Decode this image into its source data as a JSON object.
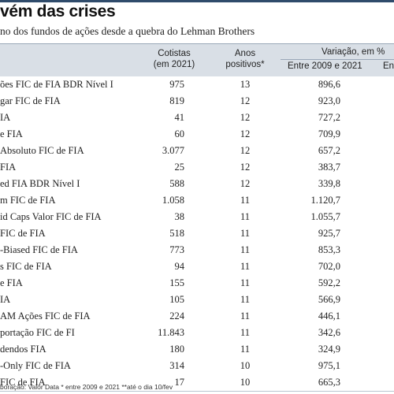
{
  "title": "vém das crises",
  "subtitle": "no dos fundos de ações desde a quebra do Lehman Brothers",
  "header": {
    "cotistas_line1": "Cotistas",
    "cotistas_line2": "(em 2021)",
    "anos_line1": "Anos",
    "anos_line2": "positivos*",
    "variacao": "Variação, em %",
    "entre": "Entre 2009 e 2021",
    "en": "En"
  },
  "rows": [
    {
      "name": "ões FIC de FIA BDR Nível I",
      "cotistas": "975",
      "anos": "13",
      "variacao": "896,6"
    },
    {
      "name": "gar FIC de FIA",
      "cotistas": "819",
      "anos": "12",
      "variacao": "923,0"
    },
    {
      "name": "IA",
      "cotistas": "41",
      "anos": "12",
      "variacao": "727,2"
    },
    {
      "name": "e FIA",
      "cotistas": "60",
      "anos": "12",
      "variacao": "709,9"
    },
    {
      "name": "Absoluto FIC de FIA",
      "cotistas": "3.077",
      "anos": "12",
      "variacao": "657,2"
    },
    {
      "name": "FIA",
      "cotistas": "25",
      "anos": "12",
      "variacao": "383,7"
    },
    {
      "name": "ed FIA BDR Nível I",
      "cotistas": "588",
      "anos": "12",
      "variacao": "339,8"
    },
    {
      "name": "m FIC de FIA",
      "cotistas": "1.058",
      "anos": "11",
      "variacao": "1.120,7"
    },
    {
      "name": "id Caps Valor FIC de FIA",
      "cotistas": "38",
      "anos": "11",
      "variacao": "1.055,7"
    },
    {
      "name": "FIC de FIA",
      "cotistas": "518",
      "anos": "11",
      "variacao": "925,7"
    },
    {
      "name": "-Biased FIC de FIA",
      "cotistas": "773",
      "anos": "11",
      "variacao": "853,3"
    },
    {
      "name": "s FIC de FIA",
      "cotistas": "94",
      "anos": "11",
      "variacao": "702,0"
    },
    {
      "name": "e FIA",
      "cotistas": "155",
      "anos": "11",
      "variacao": "592,2"
    },
    {
      "name": "IA",
      "cotistas": "105",
      "anos": "11",
      "variacao": "566,9"
    },
    {
      "name": "AM Ações FIC de FIA",
      "cotistas": "224",
      "anos": "11",
      "variacao": "446,1"
    },
    {
      "name": "portação FIC de FI",
      "cotistas": "11.843",
      "anos": "11",
      "variacao": "342,6"
    },
    {
      "name": "dendos FIA",
      "cotistas": "180",
      "anos": "11",
      "variacao": "324,9"
    },
    {
      "name": "-Only FIC de FIA",
      "cotistas": "314",
      "anos": "10",
      "variacao": "975,1"
    },
    {
      "name": "FIC de FIA",
      "cotistas": "17",
      "anos": "10",
      "variacao": "665,3"
    }
  ],
  "footnote": "boração: Valor Data * entre 2009 e 2021 **até o dia 10/fev"
}
